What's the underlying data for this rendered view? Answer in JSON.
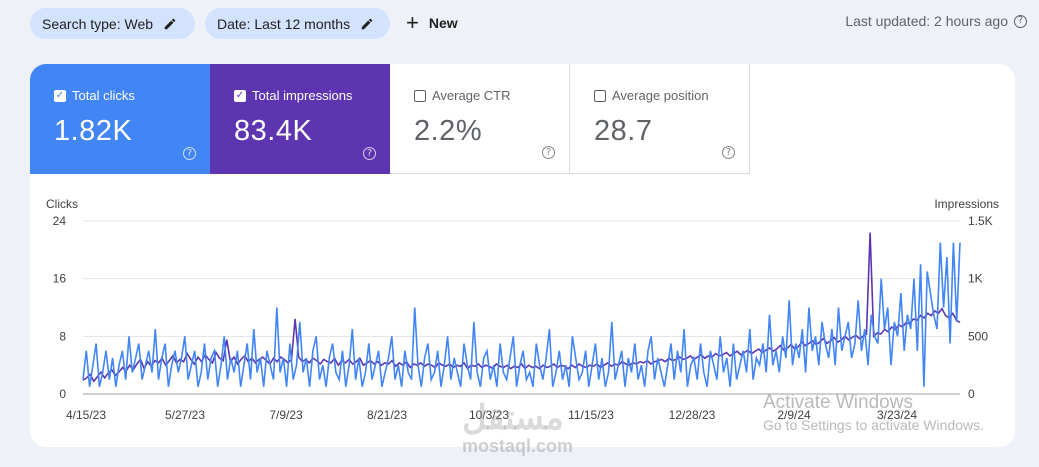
{
  "filters": {
    "search_type": "Search type: Web",
    "date": "Date: Last 12 months",
    "new_label": "New"
  },
  "last_updated": "Last updated: 2 hours ago",
  "metrics": [
    {
      "label": "Total clicks",
      "value": "1.82K",
      "checked": true
    },
    {
      "label": "Total impressions",
      "value": "83.4K",
      "checked": true
    },
    {
      "label": "Average CTR",
      "value": "2.2%",
      "checked": false
    },
    {
      "label": "Average position",
      "value": "28.7",
      "checked": false
    }
  ],
  "colors": {
    "clicks": "#4285f4",
    "impressions": "#5e35b1"
  },
  "watermark": {
    "activate_title": "Activate Windows",
    "activate_sub": "Go to Settings to activate Windows.",
    "site": "mostaql.com",
    "site_arabic": "مستقل"
  },
  "chart_data": {
    "type": "line",
    "left_axis_label": "Clicks",
    "right_axis_label": "Impressions",
    "left_ticks": [
      "24",
      "16",
      "8",
      "0"
    ],
    "right_ticks": [
      "1.5K",
      "1K",
      "500",
      "0"
    ],
    "ylim_left": [
      0,
      24
    ],
    "ylim_right": [
      0,
      1500
    ],
    "x_tick_labels": [
      "4/15/23",
      "5/27/23",
      "7/9/23",
      "8/21/23",
      "10/3/23",
      "11/15/23",
      "12/28/23",
      "2/9/24",
      "3/23/24"
    ],
    "series": [
      {
        "name": "Clicks",
        "axis": "left",
        "values": [
          2,
          6,
          1,
          4,
          7,
          1,
          3,
          6,
          2,
          5,
          1,
          4,
          6,
          2,
          8,
          3,
          5,
          7,
          2,
          4,
          6,
          3,
          9,
          2,
          5,
          7,
          1,
          4,
          6,
          3,
          5,
          8,
          2,
          4,
          6,
          1,
          3,
          7,
          2,
          5,
          6,
          1,
          4,
          8,
          2,
          5,
          3,
          6,
          1,
          4,
          7,
          2,
          9,
          3,
          5,
          1,
          6,
          4,
          2,
          12,
          3,
          5,
          1,
          7,
          2,
          4,
          10,
          3,
          5,
          1,
          6,
          8,
          2,
          4,
          1,
          5,
          7,
          3,
          2,
          6,
          1,
          4,
          9,
          2,
          5,
          1,
          3,
          7,
          2,
          4,
          6,
          1,
          3,
          5,
          8,
          2,
          4,
          1,
          6,
          3,
          2,
          12,
          4,
          1,
          5,
          7,
          2,
          3,
          6,
          1,
          4,
          8,
          2,
          5,
          3,
          1,
          7,
          4,
          2,
          10,
          3,
          1,
          5,
          6,
          2,
          4,
          1,
          7,
          3,
          2,
          5,
          8,
          1,
          4,
          6,
          2,
          3,
          1,
          7,
          4,
          2,
          5,
          9,
          1,
          3,
          6,
          2,
          4,
          1,
          8,
          5,
          2,
          3,
          6,
          1,
          4,
          7,
          2,
          5,
          1,
          3,
          10,
          2,
          4,
          6,
          1,
          5,
          3,
          7,
          2,
          4,
          1,
          6,
          8,
          2,
          5,
          3,
          1,
          4,
          7,
          2,
          6,
          3,
          9,
          1,
          4,
          5,
          2,
          7,
          3,
          1,
          6,
          4,
          2,
          8,
          3,
          5,
          1,
          7,
          2,
          4,
          6,
          3,
          9,
          2,
          5,
          4,
          7,
          3,
          11,
          4,
          6,
          3,
          8,
          5,
          13,
          4,
          7,
          5,
          9,
          3,
          12,
          6,
          8,
          4,
          10,
          7,
          5,
          9,
          4,
          12,
          6,
          8,
          10,
          5,
          7,
          13,
          6,
          9,
          4,
          11,
          8,
          7,
          16,
          9,
          12,
          4,
          10,
          8,
          14,
          6,
          11,
          9,
          16,
          6,
          18,
          1,
          17,
          14,
          11,
          9,
          21,
          12,
          19,
          7,
          21,
          10,
          21
        ]
      },
      {
        "name": "Impressions",
        "axis": "right",
        "values": [
          120,
          140,
          170,
          110,
          150,
          190,
          140,
          180,
          210,
          160,
          190,
          230,
          200,
          250,
          210,
          260,
          300,
          220,
          280,
          240,
          290,
          270,
          310,
          250,
          290,
          330,
          270,
          300,
          280,
          350,
          300,
          260,
          320,
          280,
          340,
          300,
          270,
          360,
          310,
          290,
          470,
          280,
          320,
          260,
          300,
          330,
          280,
          310,
          270,
          300,
          320,
          290,
          260,
          310,
          280,
          320,
          300,
          270,
          300,
          650,
          320,
          280,
          300,
          270,
          310,
          290,
          260,
          300,
          280,
          270,
          310,
          250,
          290,
          270,
          300,
          260,
          280,
          310,
          250,
          270,
          290,
          260,
          280,
          250,
          270,
          260,
          290,
          240,
          270,
          250,
          280,
          230,
          260,
          250,
          270,
          240,
          260,
          250,
          230,
          270,
          250,
          240,
          260,
          230,
          250,
          240,
          270,
          220,
          250,
          240,
          260,
          230,
          250,
          240,
          220,
          260,
          240,
          230,
          250,
          220,
          240,
          230,
          260,
          220,
          250,
          230,
          240,
          220,
          250,
          230,
          240,
          260,
          230,
          250,
          240,
          220,
          250,
          230,
          260,
          240,
          230,
          250,
          240,
          260,
          230,
          250,
          270,
          240,
          260,
          250,
          280,
          260,
          250,
          270,
          260,
          280,
          270,
          290,
          260,
          280,
          290,
          300,
          280,
          310,
          290,
          300,
          320,
          300,
          310,
          330,
          300,
          320,
          340,
          310,
          330,
          320,
          350,
          330,
          340,
          360,
          330,
          350,
          370,
          340,
          360,
          380,
          350,
          370,
          390,
          360,
          380,
          400,
          370,
          390,
          420,
          380,
          400,
          430,
          390,
          410,
          450,
          420,
          440,
          460,
          430,
          450,
          480,
          440,
          460,
          490,
          450,
          470,
          500,
          470,
          490,
          510,
          480,
          500,
          520,
          1400,
          500,
          530,
          520,
          560,
          540,
          580,
          560,
          600,
          580,
          620,
          610,
          650,
          640,
          680,
          660,
          700,
          680,
          720,
          700,
          740,
          680,
          660,
          700,
          640,
          620
        ]
      }
    ]
  }
}
